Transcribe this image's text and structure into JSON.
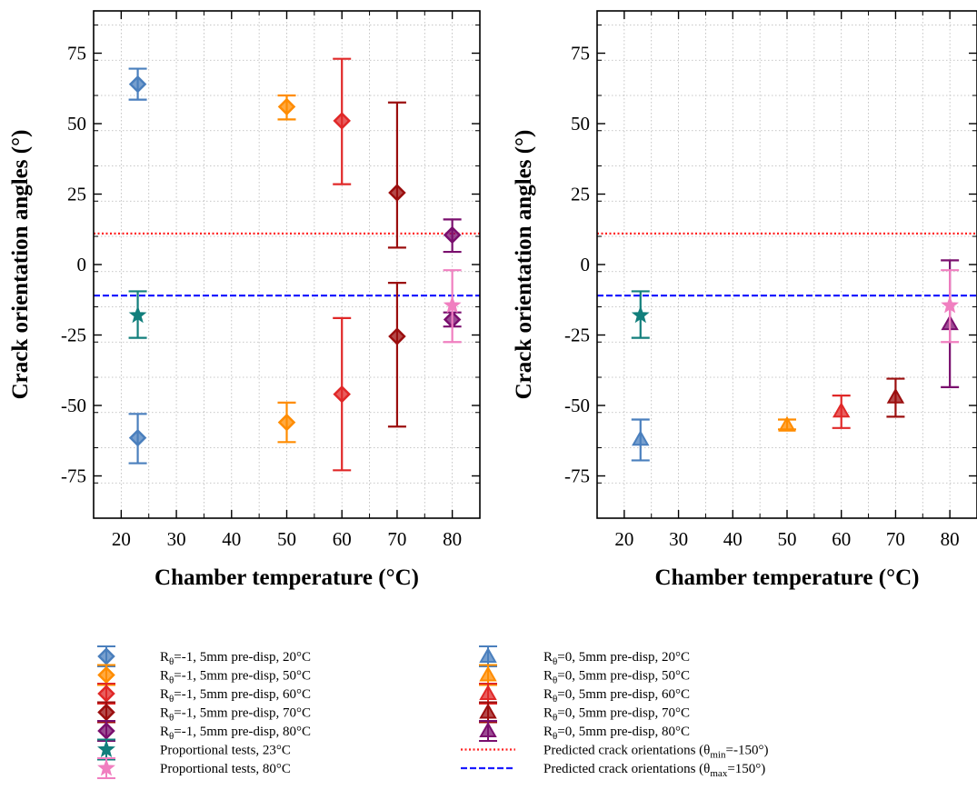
{
  "chart_data": [
    {
      "type": "scatter",
      "title": "",
      "xlabel": "Chamber temperature (°C)",
      "ylabel": "Crack orientation angles (°)",
      "xlim": [
        15,
        85
      ],
      "ylim": [
        -90,
        90
      ],
      "xticks": [
        20,
        30,
        40,
        50,
        60,
        70,
        80
      ],
      "yticks": [
        -75,
        -50,
        -25,
        0,
        25,
        50,
        75
      ],
      "grid": true,
      "hlines": [
        {
          "name": "Predicted crack orientations (θmin=-150°)",
          "y": 11,
          "style": "dotted",
          "color": "#ff2020"
        },
        {
          "name": "Predicted crack orientations (θmax=150°)",
          "y": -11,
          "style": "dashed",
          "color": "#1a1aff"
        }
      ],
      "series": [
        {
          "name": "Rθ=-1, 5mm pre-disp, 20°C",
          "marker": "diamond",
          "color": "#4a7fbd",
          "points": [
            {
              "x": 23,
              "y": 64,
              "lo": 58.5,
              "hi": 69.5
            },
            {
              "x": 23,
              "y": -61.5,
              "lo": -70.5,
              "hi": -53
            }
          ]
        },
        {
          "name": "Rθ=-1, 5mm pre-disp, 50°C",
          "marker": "diamond",
          "color": "#ff8c00",
          "points": [
            {
              "x": 50,
              "y": 56,
              "lo": 51.5,
              "hi": 60
            },
            {
              "x": 50,
              "y": -56,
              "lo": -63,
              "hi": -49
            }
          ]
        },
        {
          "name": "Rθ=-1, 5mm pre-disp, 60°C",
          "marker": "diamond",
          "color": "#e02828",
          "points": [
            {
              "x": 60,
              "y": 51,
              "lo": 28.5,
              "hi": 73
            },
            {
              "x": 60,
              "y": -46,
              "lo": -73,
              "hi": -19
            }
          ]
        },
        {
          "name": "Rθ=-1, 5mm pre-disp, 70°C",
          "marker": "diamond",
          "color": "#9b0e0e",
          "points": [
            {
              "x": 70,
              "y": 25.5,
              "lo": 6,
              "hi": 57.5
            },
            {
              "x": 70,
              "y": -25.5,
              "lo": -57.5,
              "hi": -6.5
            }
          ]
        },
        {
          "name": "Rθ=-1, 5mm pre-disp, 80°C",
          "marker": "diamond",
          "color": "#7a0f6e",
          "points": [
            {
              "x": 80,
              "y": 10.5,
              "lo": 4.5,
              "hi": 16
            },
            {
              "x": 80,
              "y": -19.5,
              "lo": -22,
              "hi": -17
            }
          ]
        },
        {
          "name": "Proportional tests, 23°C",
          "marker": "star",
          "color": "#127f7c",
          "points": [
            {
              "x": 23,
              "y": -18,
              "lo": -26,
              "hi": -9.5
            }
          ]
        },
        {
          "name": "Proportional tests, 80°C",
          "marker": "star",
          "color": "#f07fc0",
          "points": [
            {
              "x": 80,
              "y": -14.5,
              "lo": -27.5,
              "hi": -2
            }
          ]
        }
      ]
    },
    {
      "type": "scatter",
      "title": "",
      "xlabel": "Chamber temperature (°C)",
      "ylabel": "Crack orientation angles (°)",
      "xlim": [
        15,
        85
      ],
      "ylim": [
        -90,
        90
      ],
      "xticks": [
        20,
        30,
        40,
        50,
        60,
        70,
        80
      ],
      "yticks": [
        -75,
        -50,
        -25,
        0,
        25,
        50,
        75
      ],
      "grid": true,
      "hlines": [
        {
          "name": "Predicted crack orientations (θmin=-150°)",
          "y": 11,
          "style": "dotted",
          "color": "#ff2020"
        },
        {
          "name": "Predicted crack orientations (θmax=150°)",
          "y": -11,
          "style": "dashed",
          "color": "#1a1aff"
        }
      ],
      "series": [
        {
          "name": "Rθ=0, 5mm pre-disp, 20°C",
          "marker": "triangle",
          "color": "#4a7fbd",
          "points": [
            {
              "x": 23,
              "y": -62,
              "lo": -69.5,
              "hi": -55
            }
          ]
        },
        {
          "name": "Rθ=0, 5mm pre-disp, 50°C",
          "marker": "triangle",
          "color": "#ff8c00",
          "points": [
            {
              "x": 50,
              "y": -57,
              "lo": -58.5,
              "hi": -55
            }
          ]
        },
        {
          "name": "Rθ=0, 5mm pre-disp, 60°C",
          "marker": "triangle",
          "color": "#e02828",
          "points": [
            {
              "x": 60,
              "y": -52,
              "lo": -58,
              "hi": -46.5
            }
          ]
        },
        {
          "name": "Rθ=0, 5mm pre-disp, 70°C",
          "marker": "triangle",
          "color": "#9b0e0e",
          "points": [
            {
              "x": 70,
              "y": -47,
              "lo": -54,
              "hi": -40.5
            }
          ]
        },
        {
          "name": "Rθ=0, 5mm pre-disp, 80°C",
          "marker": "triangle",
          "color": "#7a0f6e",
          "points": [
            {
              "x": 80,
              "y": -21,
              "lo": -43.5,
              "hi": 1.5
            }
          ]
        },
        {
          "name": "Proportional tests, 23°C",
          "marker": "star",
          "color": "#127f7c",
          "points": [
            {
              "x": 23,
              "y": -18,
              "lo": -26,
              "hi": -9.5
            }
          ]
        },
        {
          "name": "Proportional tests, 80°C",
          "marker": "star",
          "color": "#f07fc0",
          "points": [
            {
              "x": 80,
              "y": -14.5,
              "lo": -27.5,
              "hi": -2
            }
          ]
        }
      ]
    }
  ],
  "legend": {
    "left": [
      {
        "series": "Rθ=-1, 5mm pre-disp, 20°C",
        "pre": "R",
        "sub": "θ",
        "post": "=-1, 5mm pre-disp, 20°C",
        "marker": "diamond",
        "color": "#4a7fbd"
      },
      {
        "series": "Rθ=-1, 5mm pre-disp, 50°C",
        "pre": "R",
        "sub": "θ",
        "post": "=-1, 5mm pre-disp, 50°C",
        "marker": "diamond",
        "color": "#ff8c00"
      },
      {
        "series": "Rθ=-1, 5mm pre-disp, 60°C",
        "pre": "R",
        "sub": "θ",
        "post": "=-1, 5mm pre-disp, 60°C",
        "marker": "diamond",
        "color": "#e02828"
      },
      {
        "series": "Rθ=-1, 5mm pre-disp, 70°C",
        "pre": "R",
        "sub": "θ",
        "post": "=-1, 5mm pre-disp, 70°C",
        "marker": "diamond",
        "color": "#9b0e0e"
      },
      {
        "series": "Rθ=-1, 5mm pre-disp, 80°C",
        "pre": "R",
        "sub": "θ",
        "post": "=-1, 5mm pre-disp, 80°C",
        "marker": "diamond",
        "color": "#7a0f6e"
      },
      {
        "series": "Proportional tests, 23°C",
        "pre": "Proportional tests, 23°C",
        "sub": "",
        "post": "",
        "marker": "star",
        "color": "#127f7c"
      },
      {
        "series": "Proportional tests, 80°C",
        "pre": "Proportional tests, 80°C",
        "sub": "",
        "post": "",
        "marker": "star",
        "color": "#f07fc0"
      }
    ],
    "right": [
      {
        "series": "Rθ=0, 5mm pre-disp, 20°C",
        "pre": "R",
        "sub": "θ",
        "post": "=0, 5mm pre-disp, 20°C",
        "marker": "triangle",
        "color": "#4a7fbd"
      },
      {
        "series": "Rθ=0, 5mm pre-disp, 50°C",
        "pre": "R",
        "sub": "θ",
        "post": "=0, 5mm pre-disp, 50°C",
        "marker": "triangle",
        "color": "#ff8c00"
      },
      {
        "series": "Rθ=0, 5mm pre-disp, 60°C",
        "pre": "R",
        "sub": "θ",
        "post": "=0, 5mm pre-disp, 60°C",
        "marker": "triangle",
        "color": "#e02828"
      },
      {
        "series": "Rθ=0, 5mm pre-disp, 70°C",
        "pre": "R",
        "sub": "θ",
        "post": "=0, 5mm pre-disp, 70°C",
        "marker": "triangle",
        "color": "#9b0e0e"
      },
      {
        "series": "Rθ=0, 5mm pre-disp, 80°C",
        "pre": "R",
        "sub": "θ",
        "post": "=0, 5mm pre-disp, 80°C",
        "marker": "triangle",
        "color": "#7a0f6e"
      },
      {
        "series": "Predicted crack orientations (θmin=-150°)",
        "pre": "Predicted crack orientations (θ",
        "sub": "min",
        "post": "=-150°)",
        "marker": "dotted-line",
        "color": "#ff2020"
      },
      {
        "series": "Predicted crack orientations (θmax=150°)",
        "pre": "Predicted crack orientations (θ",
        "sub": "max",
        "post": "=150°)",
        "marker": "dashed-line",
        "color": "#1a1aff"
      }
    ]
  }
}
